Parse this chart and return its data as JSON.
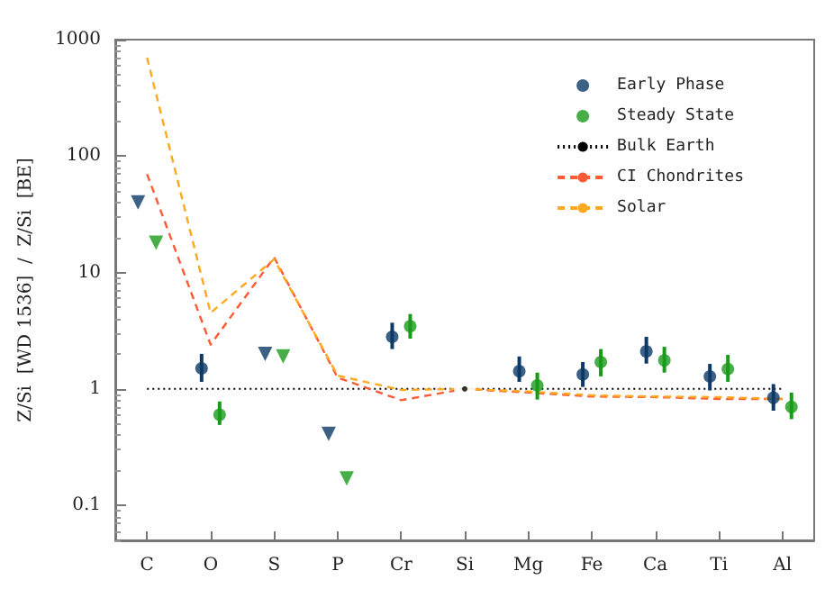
{
  "chart_data": {
    "type": "scatter",
    "ylabel": "Z/Si  [WD 1536]  /  Z/Si  [BE]",
    "categories": [
      "C",
      "O",
      "S",
      "P",
      "Cr",
      "Si",
      "Mg",
      "Fe",
      "Ca",
      "Ti",
      "Al"
    ],
    "log": true,
    "ylim": [
      0.05,
      1000
    ],
    "yticks": [
      0.1,
      1,
      10,
      100,
      1000
    ],
    "legend": "top right",
    "grid": false,
    "series": [
      {
        "name": "Early Phase",
        "marker": "circle",
        "color": "#0d3a66",
        "values": [
          null,
          1.5,
          null,
          null,
          2.8,
          null,
          1.42,
          1.33,
          2.1,
          1.28,
          0.84
        ],
        "errors": [
          null,
          [
            1.15,
            2.0
          ],
          null,
          null,
          [
            2.2,
            3.7
          ],
          null,
          [
            1.15,
            1.9
          ],
          [
            1.04,
            1.7
          ],
          [
            1.65,
            2.8
          ],
          [
            0.97,
            1.64
          ],
          [
            0.65,
            1.1
          ]
        ]
      },
      {
        "name": "Steady State",
        "marker": "circle",
        "color": "#1a9a1a",
        "values": [
          null,
          0.6,
          null,
          null,
          3.45,
          null,
          1.07,
          1.7,
          1.76,
          1.48,
          0.7
        ],
        "errors": [
          null,
          [
            0.49,
            0.78
          ],
          null,
          null,
          [
            2.7,
            4.4
          ],
          null,
          [
            0.81,
            1.38
          ],
          [
            1.28,
            2.2
          ],
          [
            1.38,
            2.3
          ],
          [
            1.15,
            1.96
          ],
          [
            0.55,
            0.93
          ]
        ]
      },
      {
        "marker": "triangle",
        "color": "#0d3a66",
        "values": [
          40,
          null,
          2.0,
          0.41,
          null,
          null,
          null,
          null,
          null,
          null,
          null
        ]
      },
      {
        "marker": "triangle",
        "color": "#1a9a1a",
        "values": [
          18,
          null,
          1.9,
          0.17,
          null,
          null,
          null,
          null,
          null,
          null,
          null
        ]
      },
      {
        "marker": "circle",
        "color": "#000000",
        "values": [
          null,
          null,
          null,
          null,
          null,
          1,
          null,
          null,
          null,
          null,
          null
        ]
      },
      {
        "name": "Bulk Earth",
        "type": "line",
        "line_style": "dotted",
        "color": "#000000",
        "values": [
          1,
          1,
          1,
          1,
          1,
          1,
          1,
          1,
          1,
          1,
          1
        ]
      },
      {
        "name": "CI Chondrites",
        "type": "line",
        "line_style": "dashed",
        "color": "#ff5a36",
        "values": [
          70,
          2.4,
          13.5,
          1.25,
          0.8,
          1,
          0.93,
          0.86,
          0.85,
          0.82,
          0.82
        ]
      },
      {
        "name": "Solar",
        "type": "line",
        "line_style": "dashed",
        "color": "#ffa820",
        "values": [
          700,
          4.5,
          13,
          1.3,
          0.98,
          1,
          0.95,
          0.88,
          0.86,
          0.85,
          0.82
        ]
      }
    ]
  }
}
